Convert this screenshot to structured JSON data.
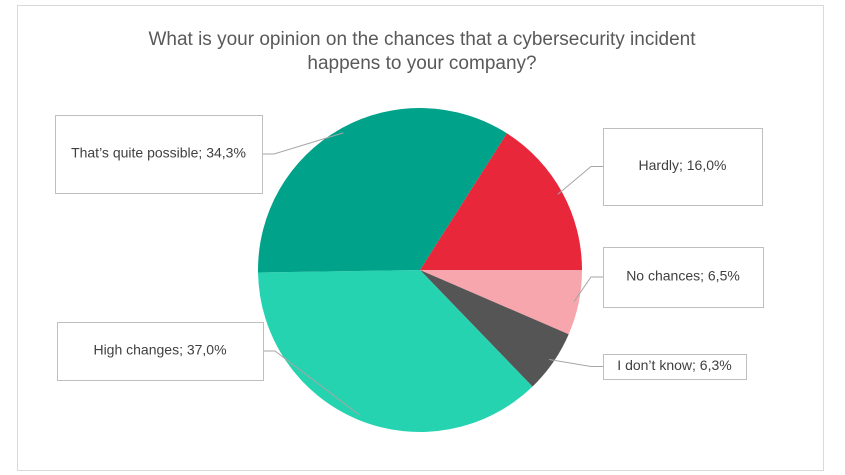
{
  "chart_data": {
    "type": "pie",
    "title": [
      "What is your opinion on the chances that a cybersecurity incident",
      "happens to your company?"
    ],
    "values": [
      6.5,
      6.3,
      37.0,
      34.3,
      16.0
    ],
    "value_labels": [
      "No chances; 6,5%",
      "I don’t know; 6,3%",
      "High changes; 37,0%",
      "That’s quite possible; 34,3%",
      "Hardly; 16,0%"
    ],
    "colors": [
      "#f7a6ad",
      "#555555",
      "#26d3b1",
      "#00a38a",
      "#e8283a"
    ]
  }
}
